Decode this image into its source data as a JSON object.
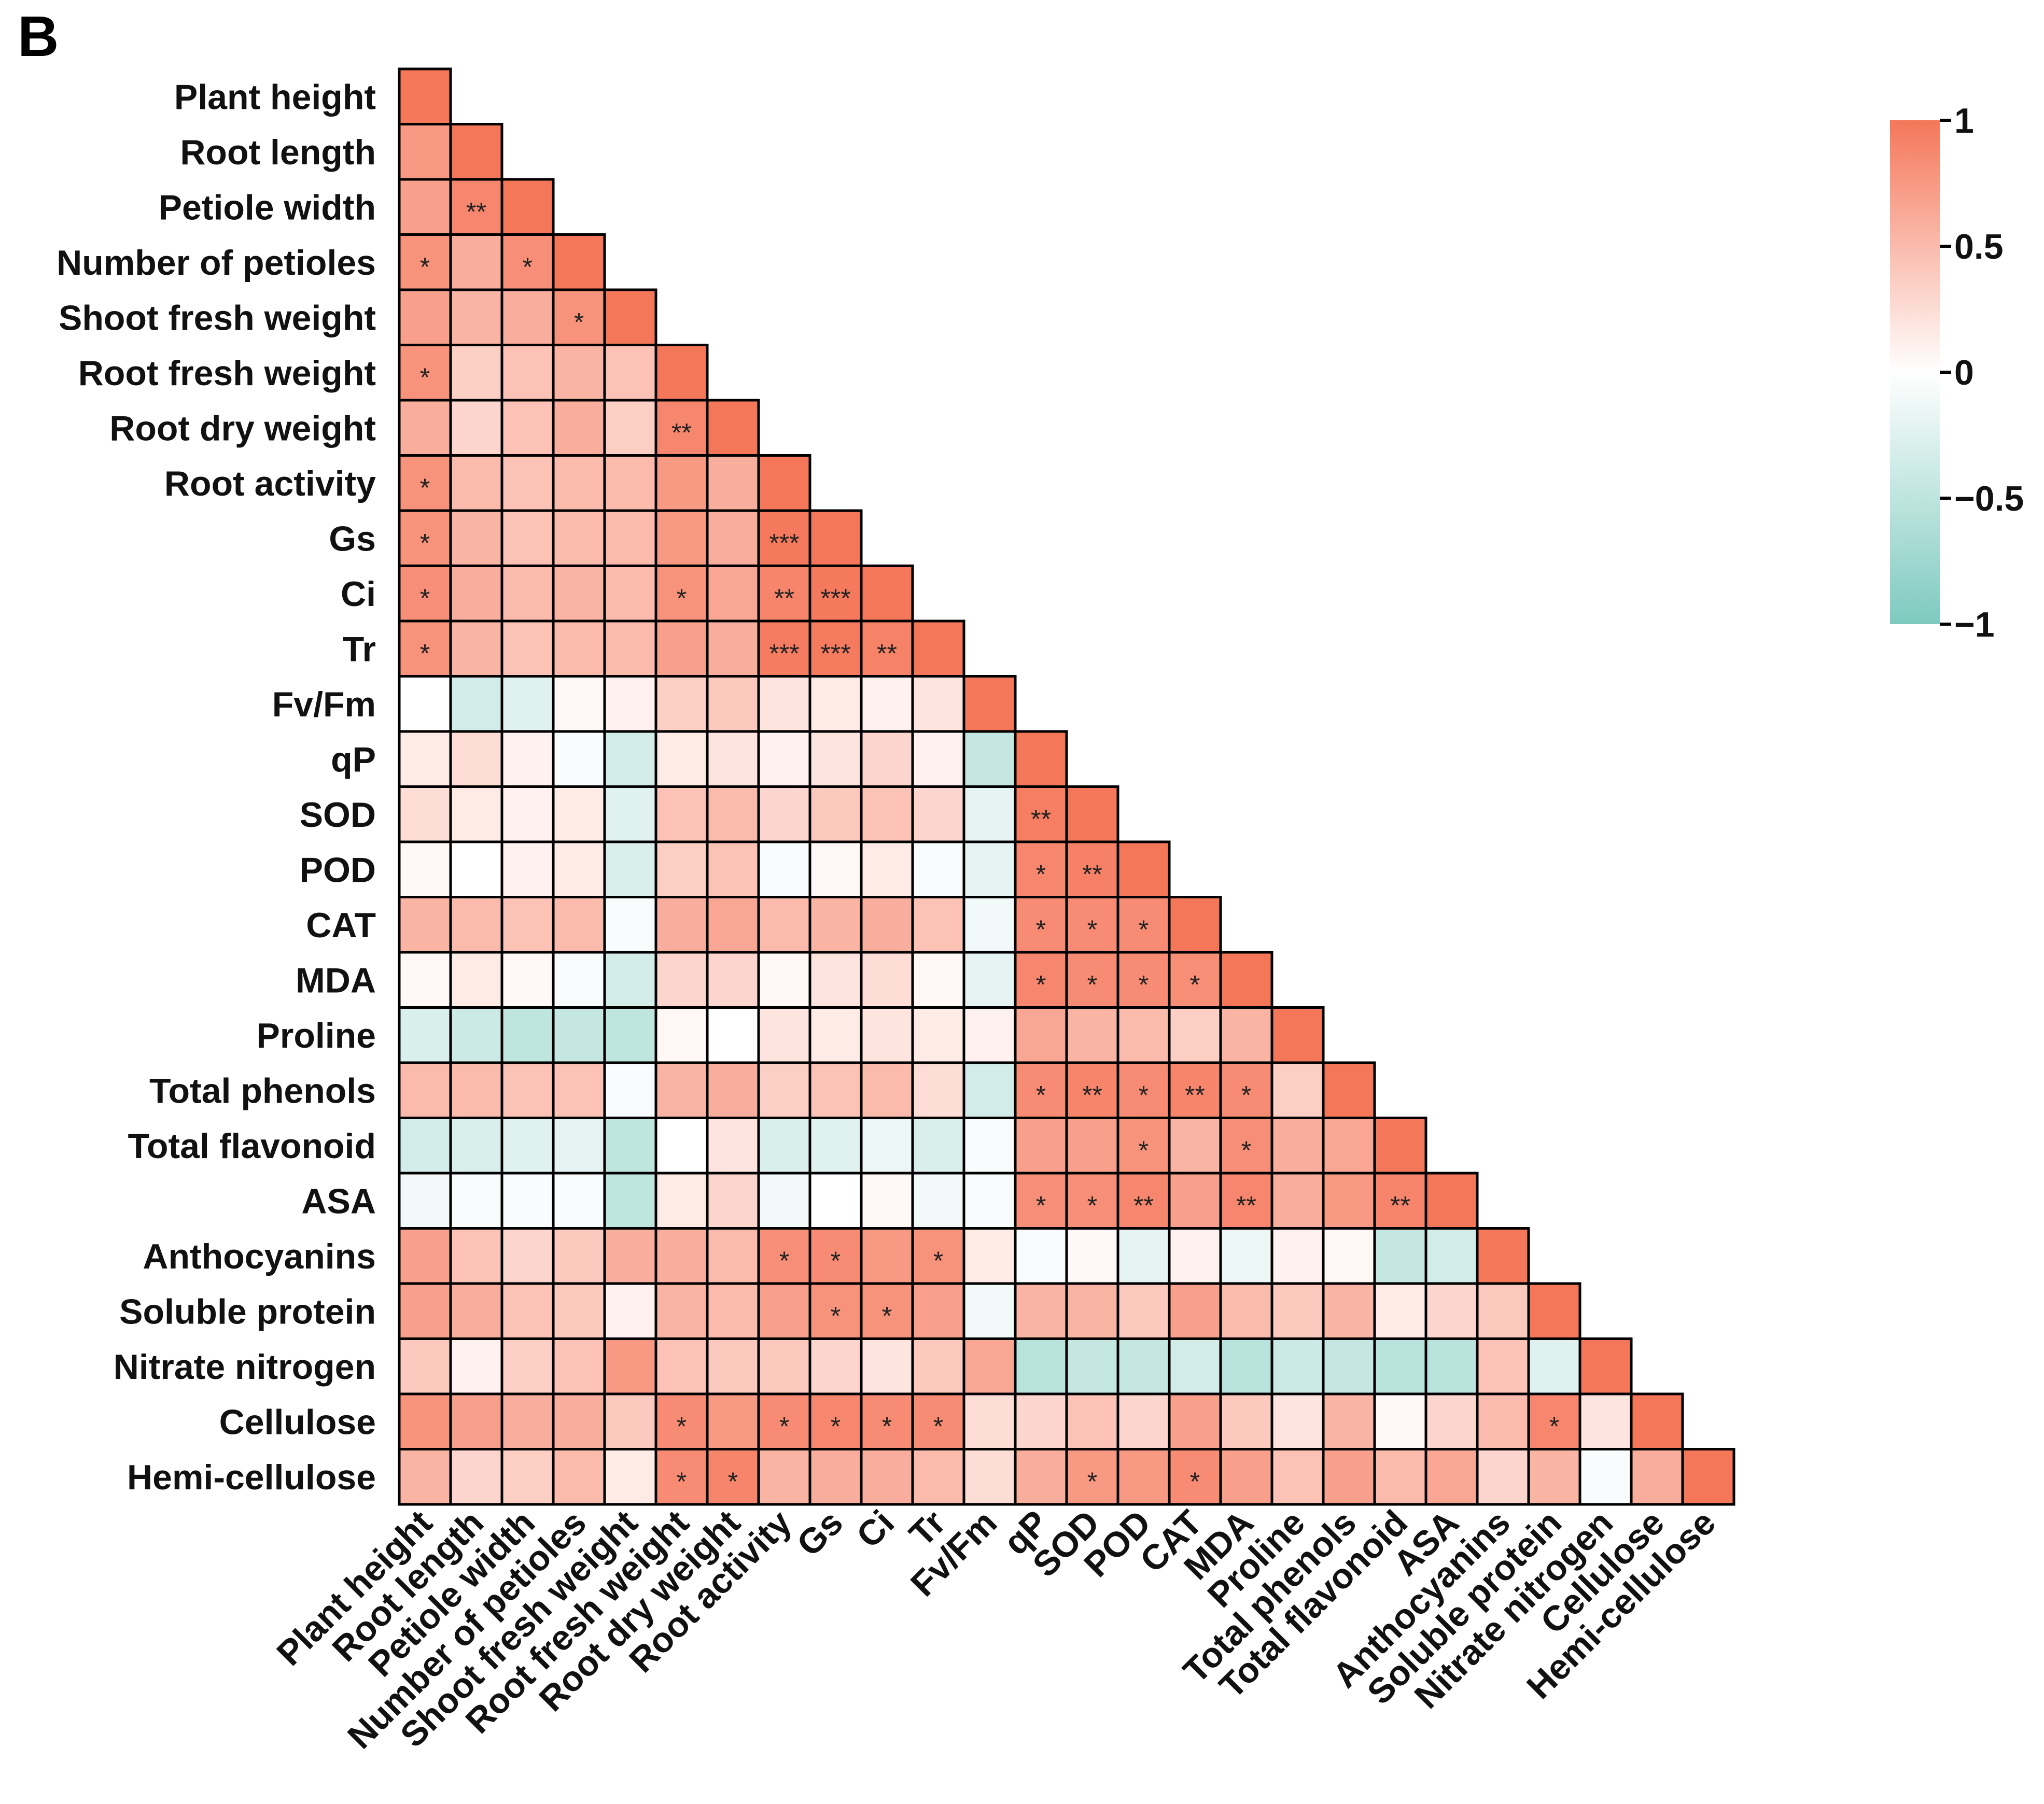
{
  "panel_label": "B",
  "chart_data": {
    "type": "heatmap",
    "title": "",
    "variables": [
      "Plant height",
      "Root length",
      "Petiole width",
      "Number of petioles",
      "Shoot fresh weight",
      "Root fresh weight",
      "Root dry weight",
      "Root activity",
      "Gs",
      "Ci",
      "Tr",
      "Fv/Fm",
      "qP",
      "SOD",
      "POD",
      "CAT",
      "MDA",
      "Proline",
      "Total phenols",
      "Total flavonoid",
      "ASA",
      "Anthocyanins",
      "Soluble protein",
      "Nitrate nitrogen",
      "Cellulose",
      "Hemi-cellulose"
    ],
    "lower_triangle_values": [
      [
        1.0
      ],
      [
        0.75,
        1.0
      ],
      [
        0.7,
        0.88,
        1.0
      ],
      [
        0.8,
        0.6,
        0.82,
        1.0
      ],
      [
        0.7,
        0.55,
        0.6,
        0.8,
        1.0
      ],
      [
        0.8,
        0.35,
        0.45,
        0.55,
        0.45,
        1.0
      ],
      [
        0.6,
        0.3,
        0.45,
        0.6,
        0.35,
        0.88,
        1.0
      ],
      [
        0.8,
        0.5,
        0.45,
        0.5,
        0.5,
        0.75,
        0.6,
        1.0
      ],
      [
        0.8,
        0.55,
        0.45,
        0.5,
        0.5,
        0.75,
        0.6,
        0.98,
        1.0
      ],
      [
        0.82,
        0.6,
        0.5,
        0.55,
        0.5,
        0.8,
        0.65,
        0.9,
        0.98,
        1.0
      ],
      [
        0.8,
        0.55,
        0.45,
        0.5,
        0.5,
        0.7,
        0.6,
        0.96,
        0.97,
        0.92,
        1.0
      ],
      [
        0.0,
        -0.35,
        -0.25,
        0.05,
        0.1,
        0.35,
        0.4,
        0.2,
        0.15,
        0.1,
        0.2,
        1.0
      ],
      [
        0.15,
        0.25,
        0.1,
        -0.05,
        -0.35,
        0.15,
        0.2,
        0.1,
        0.2,
        0.3,
        0.1,
        -0.45,
        1.0
      ],
      [
        0.25,
        0.15,
        0.1,
        0.15,
        -0.25,
        0.45,
        0.5,
        0.3,
        0.4,
        0.45,
        0.3,
        -0.2,
        0.95,
        1.0
      ],
      [
        0.05,
        0.0,
        0.1,
        0.15,
        -0.3,
        0.35,
        0.45,
        -0.05,
        0.05,
        0.15,
        -0.05,
        -0.2,
        0.88,
        0.93,
        1.0
      ],
      [
        0.55,
        0.5,
        0.45,
        0.5,
        -0.05,
        0.6,
        0.65,
        0.5,
        0.55,
        0.6,
        0.45,
        -0.1,
        0.85,
        0.85,
        0.85,
        1.0
      ],
      [
        0.05,
        0.15,
        0.05,
        -0.05,
        -0.35,
        0.3,
        0.3,
        0.05,
        0.2,
        0.25,
        0.05,
        -0.2,
        0.88,
        0.85,
        0.85,
        0.83,
        1.0
      ],
      [
        -0.3,
        -0.4,
        -0.5,
        -0.45,
        -0.5,
        0.05,
        0.0,
        0.2,
        0.15,
        0.2,
        0.15,
        0.1,
        0.65,
        0.55,
        0.5,
        0.35,
        0.55,
        1.0
      ],
      [
        0.5,
        0.5,
        0.45,
        0.45,
        -0.05,
        0.55,
        0.6,
        0.35,
        0.45,
        0.5,
        0.25,
        -0.35,
        0.85,
        0.9,
        0.85,
        0.9,
        0.85,
        0.35,
        1.0
      ],
      [
        -0.35,
        -0.3,
        -0.25,
        -0.2,
        -0.5,
        0.0,
        0.2,
        -0.3,
        -0.25,
        -0.15,
        -0.3,
        -0.05,
        0.7,
        0.7,
        0.8,
        0.55,
        0.82,
        0.6,
        0.65,
        1.0
      ],
      [
        -0.1,
        -0.05,
        -0.05,
        -0.05,
        -0.5,
        0.15,
        0.3,
        -0.1,
        0.0,
        0.05,
        -0.1,
        -0.05,
        0.82,
        0.82,
        0.88,
        0.7,
        0.88,
        0.6,
        0.75,
        0.9,
        1.0
      ],
      [
        0.7,
        0.45,
        0.3,
        0.4,
        0.6,
        0.6,
        0.5,
        0.82,
        0.85,
        0.75,
        0.8,
        0.15,
        -0.05,
        0.05,
        -0.2,
        0.1,
        -0.15,
        0.1,
        0.05,
        -0.45,
        -0.35,
        1.0
      ],
      [
        0.7,
        0.6,
        0.45,
        0.4,
        0.1,
        0.55,
        0.5,
        0.7,
        0.8,
        0.8,
        0.7,
        -0.1,
        0.55,
        0.55,
        0.4,
        0.7,
        0.5,
        0.4,
        0.55,
        0.15,
        0.3,
        0.4,
        1.0
      ],
      [
        0.4,
        0.1,
        0.35,
        0.45,
        0.75,
        0.45,
        0.4,
        0.4,
        0.3,
        0.2,
        0.4,
        0.65,
        -0.55,
        -0.45,
        -0.45,
        -0.35,
        -0.55,
        -0.4,
        -0.45,
        -0.55,
        -0.55,
        0.45,
        -0.25,
        1.0
      ],
      [
        0.8,
        0.7,
        0.6,
        0.6,
        0.4,
        0.85,
        0.75,
        0.85,
        0.88,
        0.85,
        0.85,
        0.25,
        0.3,
        0.45,
        0.3,
        0.7,
        0.4,
        0.2,
        0.55,
        0.05,
        0.3,
        0.5,
        0.88,
        0.2,
        1.0
      ],
      [
        0.55,
        0.3,
        0.35,
        0.5,
        0.15,
        0.85,
        0.9,
        0.55,
        0.6,
        0.6,
        0.5,
        0.25,
        0.6,
        0.75,
        0.75,
        0.85,
        0.7,
        0.45,
        0.7,
        0.5,
        0.65,
        0.3,
        0.55,
        -0.05,
        0.6,
        1.0
      ]
    ],
    "significance": [
      {
        "row": "Petiole width",
        "col": "Root length",
        "mark": "**"
      },
      {
        "row": "Number of petioles",
        "col": "Plant height",
        "mark": "*"
      },
      {
        "row": "Number of petioles",
        "col": "Petiole width",
        "mark": "*"
      },
      {
        "row": "Shoot fresh weight",
        "col": "Number of petioles",
        "mark": "*"
      },
      {
        "row": "Root fresh weight",
        "col": "Plant height",
        "mark": "*"
      },
      {
        "row": "Root dry weight",
        "col": "Root fresh weight",
        "mark": "**"
      },
      {
        "row": "Root activity",
        "col": "Plant height",
        "mark": "*"
      },
      {
        "row": "Gs",
        "col": "Plant height",
        "mark": "*"
      },
      {
        "row": "Gs",
        "col": "Root activity",
        "mark": "***"
      },
      {
        "row": "Ci",
        "col": "Plant height",
        "mark": "*"
      },
      {
        "row": "Ci",
        "col": "Root fresh weight",
        "mark": "*"
      },
      {
        "row": "Ci",
        "col": "Root activity",
        "mark": "**"
      },
      {
        "row": "Ci",
        "col": "Gs",
        "mark": "***"
      },
      {
        "row": "Tr",
        "col": "Plant height",
        "mark": "*"
      },
      {
        "row": "Tr",
        "col": "Root activity",
        "mark": "***"
      },
      {
        "row": "Tr",
        "col": "Gs",
        "mark": "***"
      },
      {
        "row": "Tr",
        "col": "Ci",
        "mark": "**"
      },
      {
        "row": "SOD",
        "col": "qP",
        "mark": "**"
      },
      {
        "row": "POD",
        "col": "qP",
        "mark": "*"
      },
      {
        "row": "POD",
        "col": "SOD",
        "mark": "**"
      },
      {
        "row": "CAT",
        "col": "qP",
        "mark": "*"
      },
      {
        "row": "CAT",
        "col": "SOD",
        "mark": "*"
      },
      {
        "row": "CAT",
        "col": "POD",
        "mark": "*"
      },
      {
        "row": "MDA",
        "col": "qP",
        "mark": "*"
      },
      {
        "row": "MDA",
        "col": "SOD",
        "mark": "*"
      },
      {
        "row": "MDA",
        "col": "POD",
        "mark": "*"
      },
      {
        "row": "MDA",
        "col": "CAT",
        "mark": "*"
      },
      {
        "row": "Total phenols",
        "col": "qP",
        "mark": "*"
      },
      {
        "row": "Total phenols",
        "col": "SOD",
        "mark": "**"
      },
      {
        "row": "Total phenols",
        "col": "POD",
        "mark": "*"
      },
      {
        "row": "Total phenols",
        "col": "CAT",
        "mark": "**"
      },
      {
        "row": "Total phenols",
        "col": "MDA",
        "mark": "*"
      },
      {
        "row": "Total flavonoid",
        "col": "POD",
        "mark": "*"
      },
      {
        "row": "Total flavonoid",
        "col": "MDA",
        "mark": "*"
      },
      {
        "row": "ASA",
        "col": "qP",
        "mark": "*"
      },
      {
        "row": "ASA",
        "col": "SOD",
        "mark": "*"
      },
      {
        "row": "ASA",
        "col": "POD",
        "mark": "**"
      },
      {
        "row": "ASA",
        "col": "MDA",
        "mark": "**"
      },
      {
        "row": "ASA",
        "col": "Total flavonoid",
        "mark": "**"
      },
      {
        "row": "Anthocyanins",
        "col": "Root activity",
        "mark": "*"
      },
      {
        "row": "Anthocyanins",
        "col": "Gs",
        "mark": "*"
      },
      {
        "row": "Anthocyanins",
        "col": "Tr",
        "mark": "*"
      },
      {
        "row": "Soluble protein",
        "col": "Gs",
        "mark": "*"
      },
      {
        "row": "Soluble protein",
        "col": "Ci",
        "mark": "*"
      },
      {
        "row": "Cellulose",
        "col": "Root fresh weight",
        "mark": "*"
      },
      {
        "row": "Cellulose",
        "col": "Root activity",
        "mark": "*"
      },
      {
        "row": "Cellulose",
        "col": "Gs",
        "mark": "*"
      },
      {
        "row": "Cellulose",
        "col": "Ci",
        "mark": "*"
      },
      {
        "row": "Cellulose",
        "col": "Tr",
        "mark": "*"
      },
      {
        "row": "Cellulose",
        "col": "Soluble protein",
        "mark": "*"
      },
      {
        "row": "Hemi-cellulose",
        "col": "Root fresh weight",
        "mark": "*"
      },
      {
        "row": "Hemi-cellulose",
        "col": "Root dry weight",
        "mark": "*"
      },
      {
        "row": "Hemi-cellulose",
        "col": "SOD",
        "mark": "*"
      },
      {
        "row": "Hemi-cellulose",
        "col": "CAT",
        "mark": "*"
      }
    ],
    "colorbar": {
      "range": [
        -1,
        1
      ],
      "ticks": [
        1,
        0.5,
        0,
        -0.5,
        -1
      ],
      "tick_labels": [
        "1",
        "0.5",
        "0",
        "−0.5",
        "−1"
      ],
      "color_high": "#f5775a",
      "color_mid": "#ffffff",
      "color_low": "#7ecabf"
    },
    "legend_placement": "top-right",
    "grid": false
  }
}
